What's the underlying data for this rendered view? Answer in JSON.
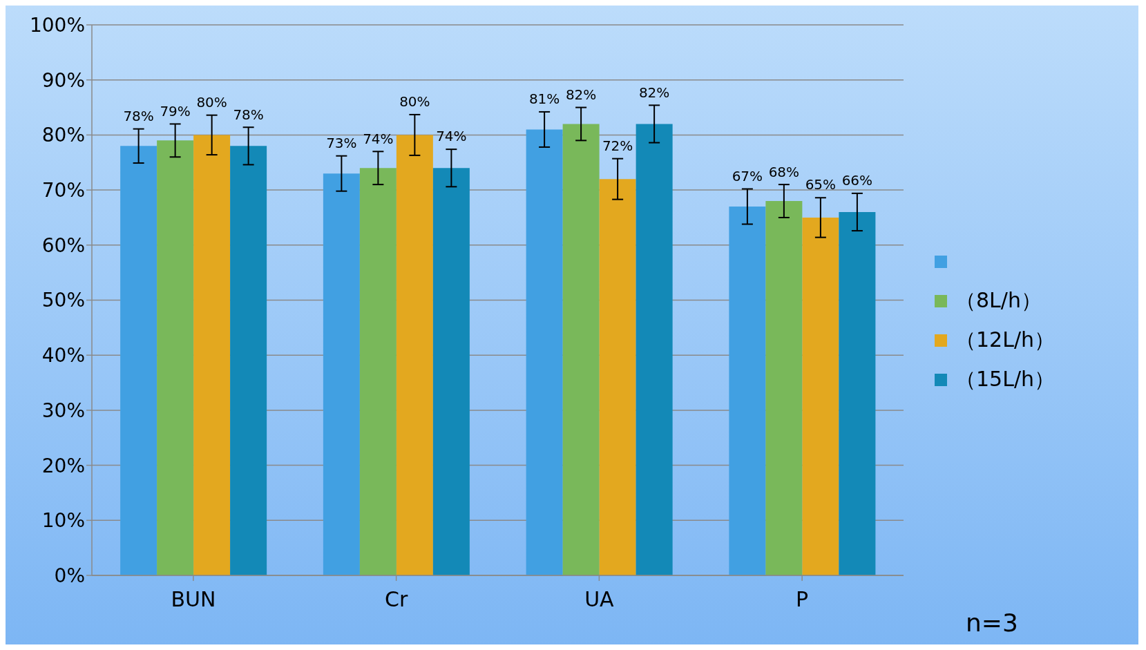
{
  "chart_data": {
    "type": "bar",
    "categories": [
      "BUN",
      "Cr",
      "UA",
      "P"
    ],
    "series": [
      {
        "name": null,
        "color": "#41a0e2",
        "values": [
          78,
          73,
          81,
          67
        ],
        "errors": [
          3.1,
          3.2,
          3.2,
          3.2
        ],
        "value_labels": [
          "78%",
          "73%",
          "81%",
          "67%"
        ]
      },
      {
        "name": "（8L/h）",
        "color": "#79b85a",
        "values": [
          79,
          74,
          82,
          68
        ],
        "errors": [
          3,
          3,
          3,
          3
        ],
        "value_labels": [
          "79%",
          "74%",
          "82%",
          "68%"
        ]
      },
      {
        "name": "（12L/h）",
        "color": "#e3a81f",
        "values": [
          80,
          80,
          72,
          65
        ],
        "errors": [
          3.6,
          3.7,
          3.7,
          3.6
        ],
        "value_labels": [
          "80%",
          "80%",
          "72%",
          "65%"
        ]
      },
      {
        "name": "（15L/h）",
        "color": "#1389b7",
        "values": [
          78,
          74,
          82,
          66
        ],
        "errors": [
          3.4,
          3.4,
          3.4,
          3.4
        ],
        "value_labels": [
          "78%",
          "74%",
          "82%",
          "66%"
        ]
      }
    ],
    "ylim": [
      0,
      100
    ],
    "yticks": [
      {
        "value": 0,
        "label": "0%"
      },
      {
        "value": 10,
        "label": "10%"
      },
      {
        "value": 20,
        "label": "20%"
      },
      {
        "value": 30,
        "label": "30%"
      },
      {
        "value": 40,
        "label": "40%"
      },
      {
        "value": 50,
        "label": "50%"
      },
      {
        "value": 60,
        "label": "60%"
      },
      {
        "value": 70,
        "label": "70%"
      },
      {
        "value": 80,
        "label": "80%"
      },
      {
        "value": 90,
        "label": "90%"
      },
      {
        "value": 100,
        "label": "100%"
      }
    ],
    "grid": "y",
    "legend": "right",
    "annotations": [
      "n=3"
    ]
  }
}
